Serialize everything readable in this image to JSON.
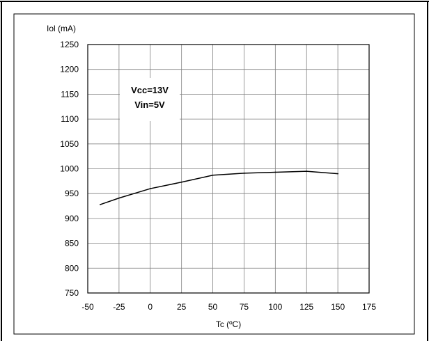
{
  "chart_data": {
    "type": "line",
    "title": "",
    "xlabel": "Tc (ºC)",
    "ylabel": "Iol (mA)",
    "xlim": [
      -50,
      175
    ],
    "ylim": [
      750,
      1250
    ],
    "x_ticks": [
      -50,
      -25,
      0,
      25,
      50,
      75,
      100,
      125,
      150,
      175
    ],
    "y_ticks": [
      750,
      800,
      850,
      900,
      950,
      1000,
      1050,
      1100,
      1150,
      1200,
      1250
    ],
    "grid": true,
    "annotations": [
      "Vcc=13V",
      "Vin=5V"
    ],
    "series": [
      {
        "x": [
          -40,
          -25,
          0,
          25,
          50,
          75,
          100,
          125,
          150
        ],
        "y": [
          928,
          941,
          960,
          973,
          987,
          991,
          993,
          995,
          990
        ]
      }
    ],
    "colors": {
      "line": "#000000",
      "grid": "#808080",
      "frame": "#000000"
    }
  }
}
